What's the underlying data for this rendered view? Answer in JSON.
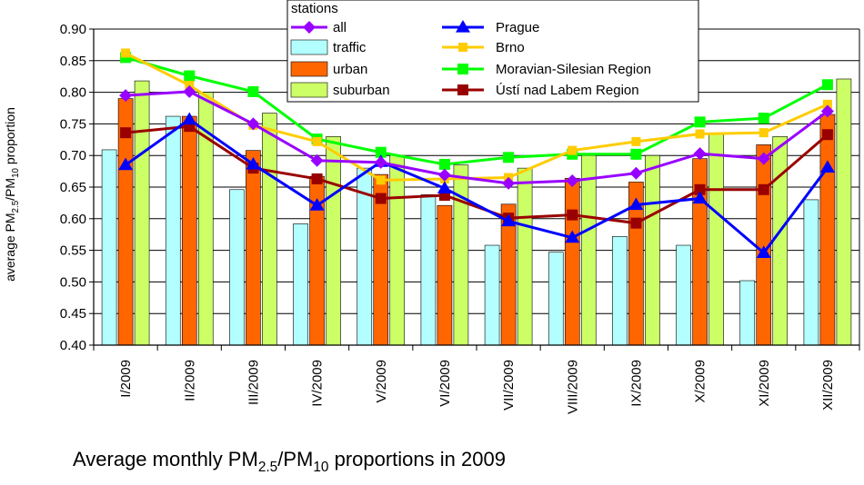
{
  "chart_data": {
    "type": "bar",
    "title": "Average monthly PM2.5/PM10 proportions in 2009",
    "title_parts": {
      "prefix": "Average monthly PM",
      "sub1": "2.5",
      "mid": "/PM",
      "sub2": "10",
      "suffix": " proportions in 2009"
    },
    "xlabel": "",
    "ylabel": "average PM2.5/PM10 proportion",
    "ylabel_parts": {
      "prefix": "average PM",
      "sub1": "2.5",
      "mid": "/PM",
      "sub2": "10",
      "suffix": " proportion"
    },
    "ylim": [
      0.4,
      0.9
    ],
    "yticks": [
      "0.40",
      "0.45",
      "0.50",
      "0.55",
      "0.60",
      "0.65",
      "0.70",
      "0.75",
      "0.80",
      "0.85",
      "0.90"
    ],
    "ytick_values": [
      0.4,
      0.45,
      0.5,
      0.55,
      0.6,
      0.65,
      0.7,
      0.75,
      0.8,
      0.85,
      0.9
    ],
    "grid": "horizontal",
    "categories": [
      "I/2009",
      "II/2009",
      "III/2009",
      "IV/2009",
      "V/2009",
      "VI/2009",
      "VII/2009",
      "VIII/2009",
      "IX/2009",
      "X/2009",
      "XI/2009",
      "XII/2009"
    ],
    "legend_title": "stations",
    "legend_placement": "top",
    "bar_series": [
      {
        "name": "traffic",
        "color": "#b3ffff",
        "values": [
          0.709,
          0.762,
          0.646,
          0.592,
          0.68,
          0.638,
          0.558,
          0.547,
          0.572,
          0.558,
          0.502,
          0.63
        ]
      },
      {
        "name": "urban",
        "color": "#ff6600",
        "values": [
          0.79,
          0.762,
          0.708,
          0.667,
          0.67,
          0.621,
          0.623,
          0.664,
          0.658,
          0.695,
          0.717,
          0.765
        ]
      },
      {
        "name": "suburban",
        "color": "#ccff66",
        "values": [
          0.818,
          0.8,
          0.767,
          0.73,
          0.7,
          0.685,
          0.68,
          0.7,
          0.7,
          0.735,
          0.73,
          0.821
        ]
      }
    ],
    "line_series": [
      {
        "name": "all",
        "color": "#9900ff",
        "marker": "diamond",
        "values": [
          0.795,
          0.801,
          0.75,
          0.692,
          0.689,
          0.669,
          0.656,
          0.66,
          0.672,
          0.703,
          0.695,
          0.77
        ]
      },
      {
        "name": "Prague",
        "color": "#0000ff",
        "marker": "triangle",
        "values": [
          0.685,
          0.757,
          0.686,
          0.621,
          0.69,
          0.648,
          0.596,
          0.57,
          0.622,
          0.632,
          0.546,
          0.681
        ]
      },
      {
        "name": "Brno",
        "color": "#ffcc00",
        "marker": "square-small",
        "values": [
          0.862,
          0.811,
          0.748,
          0.722,
          0.661,
          0.663,
          0.665,
          0.708,
          0.722,
          0.734,
          0.736,
          0.781
        ]
      },
      {
        "name": "Moravian-Silesian Region",
        "color": "#00ff00",
        "marker": "square",
        "values": [
          0.855,
          0.826,
          0.801,
          0.726,
          0.705,
          0.686,
          0.697,
          0.702,
          0.702,
          0.753,
          0.759,
          0.812
        ]
      },
      {
        "name": "Ústí nad Labem Region",
        "color": "#990000",
        "marker": "square",
        "values": [
          0.736,
          0.746,
          0.68,
          0.663,
          0.632,
          0.637,
          0.601,
          0.606,
          0.593,
          0.646,
          0.646,
          0.733
        ]
      }
    ],
    "legend_left": [
      "all",
      "traffic",
      "urban",
      "suburban"
    ],
    "legend_right": [
      "Prague",
      "Brno",
      "Moravian-Silesian Region",
      "Ústí nad Labem Region"
    ]
  }
}
